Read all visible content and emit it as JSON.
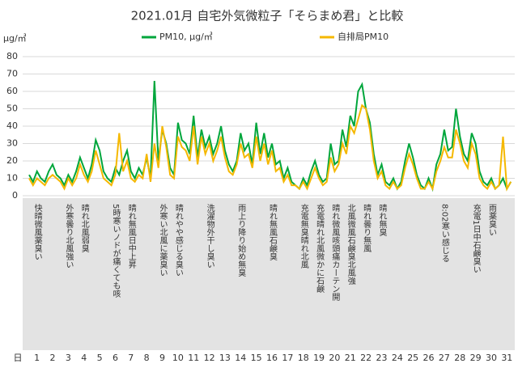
{
  "chart_data": {
    "type": "line",
    "title": "2021.01月 自宅外気微粒子「そらまめ君」と比較",
    "ylabel": "μg/㎥",
    "xlabel": "日",
    "xlim": [
      0.5,
      31.5
    ],
    "xticks": [
      1,
      2,
      3,
      4,
      5,
      6,
      7,
      8,
      9,
      10,
      11,
      12,
      13,
      14,
      15,
      16,
      17,
      18,
      19,
      20,
      21,
      22,
      23,
      24,
      25,
      26,
      27,
      28,
      29,
      30,
      31
    ],
    "ylim": [
      0,
      80
    ],
    "yticks": [
      0,
      10,
      20,
      30,
      40,
      50,
      60,
      70,
      80
    ],
    "grid": true,
    "x": [
      0.5,
      0.75,
      1,
      1.25,
      1.5,
      1.75,
      2,
      2.25,
      2.5,
      2.75,
      3,
      3.25,
      3.5,
      3.75,
      4,
      4.25,
      4.5,
      4.75,
      5,
      5.25,
      5.5,
      5.75,
      6,
      6.25,
      6.5,
      6.75,
      7,
      7.25,
      7.5,
      7.75,
      8,
      8.25,
      8.5,
      8.75,
      9,
      9.25,
      9.5,
      9.75,
      10,
      10.25,
      10.5,
      10.75,
      11,
      11.25,
      11.5,
      11.75,
      12,
      12.25,
      12.5,
      12.75,
      13,
      13.25,
      13.5,
      13.75,
      14,
      14.25,
      14.5,
      14.75,
      15,
      15.25,
      15.5,
      15.75,
      16,
      16.25,
      16.5,
      16.75,
      17,
      17.25,
      17.5,
      17.75,
      18,
      18.25,
      18.5,
      18.75,
      19,
      19.25,
      19.5,
      19.75,
      20,
      20.25,
      20.5,
      20.75,
      21,
      21.25,
      21.5,
      21.75,
      22,
      22.25,
      22.5,
      22.75,
      23,
      23.25,
      23.5,
      23.75,
      24,
      24.25,
      24.5,
      24.75,
      25,
      25.25,
      25.5,
      25.75,
      26,
      26.25,
      26.5,
      26.75,
      27,
      27.25,
      27.5,
      27.75,
      28,
      28.25,
      28.5,
      28.75,
      29,
      29.25,
      29.5,
      29.75,
      30,
      30.25,
      30.5,
      30.75,
      31,
      31.25
    ],
    "series": [
      {
        "name": "PM10, μg/㎥",
        "color": "#00a63c",
        "values": [
          12,
          8,
          14,
          10,
          8,
          14,
          18,
          12,
          10,
          6,
          12,
          8,
          14,
          22,
          16,
          10,
          18,
          32,
          26,
          14,
          10,
          8,
          16,
          12,
          20,
          26,
          14,
          10,
          16,
          12,
          22,
          10,
          66,
          20,
          38,
          30,
          16,
          12,
          42,
          32,
          30,
          24,
          46,
          22,
          38,
          28,
          34,
          24,
          30,
          40,
          26,
          18,
          14,
          20,
          36,
          26,
          30,
          18,
          42,
          24,
          36,
          22,
          30,
          18,
          20,
          10,
          16,
          8,
          6,
          4,
          10,
          6,
          14,
          20,
          12,
          8,
          10,
          30,
          18,
          20,
          38,
          28,
          46,
          40,
          60,
          64,
          50,
          42,
          24,
          12,
          18,
          8,
          6,
          10,
          4,
          8,
          20,
          30,
          22,
          12,
          6,
          4,
          10,
          4,
          18,
          24,
          38,
          26,
          28,
          50,
          34,
          24,
          20,
          36,
          30,
          14,
          8,
          6,
          10,
          4,
          6,
          10,
          4,
          8
        ]
      },
      {
        "name": "自排局PM10",
        "color": "#f5b800",
        "values": [
          10,
          6,
          10,
          8,
          6,
          10,
          12,
          10,
          8,
          4,
          10,
          6,
          10,
          18,
          12,
          8,
          14,
          26,
          18,
          10,
          8,
          6,
          12,
          36,
          14,
          20,
          10,
          8,
          12,
          10,
          24,
          8,
          30,
          16,
          40,
          28,
          12,
          10,
          34,
          28,
          26,
          20,
          40,
          18,
          34,
          24,
          30,
          20,
          26,
          34,
          22,
          14,
          12,
          18,
          30,
          22,
          24,
          16,
          34,
          20,
          30,
          18,
          26,
          14,
          16,
          8,
          12,
          6,
          6,
          4,
          8,
          4,
          10,
          16,
          10,
          6,
          8,
          22,
          14,
          18,
          30,
          24,
          40,
          36,
          44,
          52,
          50,
          38,
          20,
          10,
          14,
          6,
          4,
          8,
          4,
          6,
          16,
          24,
          18,
          10,
          4,
          4,
          8,
          4,
          14,
          20,
          28,
          22,
          22,
          38,
          30,
          20,
          16,
          30,
          24,
          10,
          6,
          4,
          8,
          4,
          6,
          34,
          4,
          8
        ]
      }
    ],
    "annotations": [
      {
        "x": 1,
        "text": "快晴微風薬臭い"
      },
      {
        "x": 3,
        "text": "外寒曇り北風強い"
      },
      {
        "x": 4,
        "text": "晴れ北風弱臭"
      },
      {
        "x": 6,
        "text": "5時寒いノドが痛くても咳"
      },
      {
        "x": 7,
        "text": "晴れ無風日中上昇"
      },
      {
        "x": 9,
        "text": "外寒い北風に薬臭い"
      },
      {
        "x": 10,
        "text": "晴れやや感じる臭い"
      },
      {
        "x": 12,
        "text": "洗濯物外干し臭い"
      },
      {
        "x": 14,
        "text": "雨上り降り始め無臭"
      },
      {
        "x": 16,
        "text": "晴れ無風石鹸臭"
      },
      {
        "x": 18,
        "text": "充電無臭晴れ北風"
      },
      {
        "x": 19,
        "text": "充電晴れ北風微かに石鹸"
      },
      {
        "x": 20,
        "text": "晴れ微風咳頭痛カーテン開"
      },
      {
        "x": 21,
        "text": "北風微風石鹸臭北風強"
      },
      {
        "x": 22,
        "text": "晴れ曇り無風"
      },
      {
        "x": 23,
        "text": "晴れ無臭"
      },
      {
        "x": 27,
        "text": "8:02寒い感じる"
      },
      {
        "x": 29,
        "text": "充電1日中石鹸臭い"
      },
      {
        "x": 30,
        "text": "雨薬臭い"
      }
    ]
  }
}
